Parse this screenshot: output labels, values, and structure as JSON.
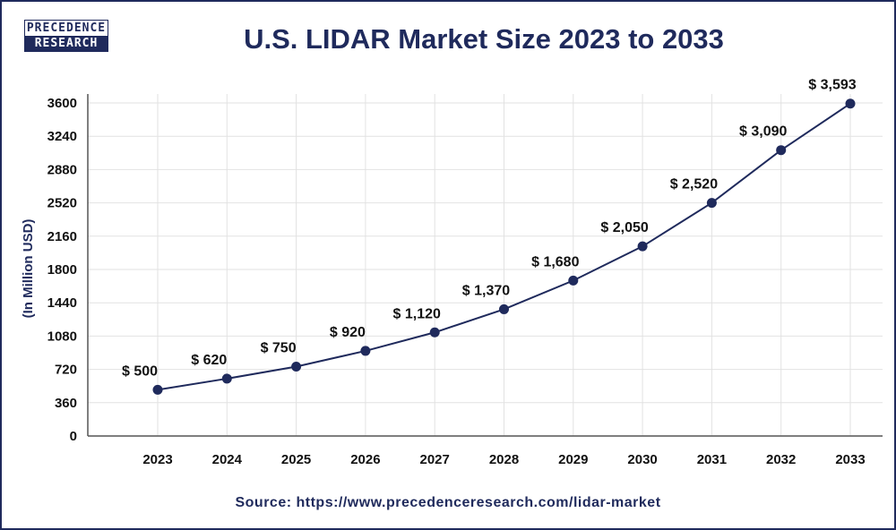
{
  "logo": {
    "line1": "PRECEDENCE",
    "line2": "RESEARCH"
  },
  "source": "Source: https://www.precedenceresearch.com/lidar-market",
  "colors": {
    "primary": "#1f2a5c",
    "grid": "#e2e2e2"
  },
  "chart_data": {
    "type": "line",
    "title": "U.S. LIDAR Market Size 2023 to 2033",
    "ylabel": "(In Million USD)",
    "xlabel": "",
    "categories": [
      "2023",
      "2024",
      "2025",
      "2026",
      "2027",
      "2028",
      "2029",
      "2030",
      "2031",
      "2032",
      "2033"
    ],
    "values": [
      500,
      620,
      750,
      920,
      1120,
      1370,
      1680,
      2050,
      2520,
      3090,
      3593
    ],
    "data_labels": [
      "$ 500",
      "$ 620",
      "$ 750",
      "$ 920",
      "$ 1,120",
      "$ 1,370",
      "$ 1,680",
      "$ 2,050",
      "$ 2,520",
      "$ 3,090",
      "$ 3,593"
    ],
    "yticks": [
      0,
      360,
      720,
      1080,
      1440,
      1800,
      2160,
      2520,
      2880,
      3240,
      3600
    ],
    "ylim": [
      0,
      3600
    ],
    "grid": true,
    "legend": "none"
  }
}
